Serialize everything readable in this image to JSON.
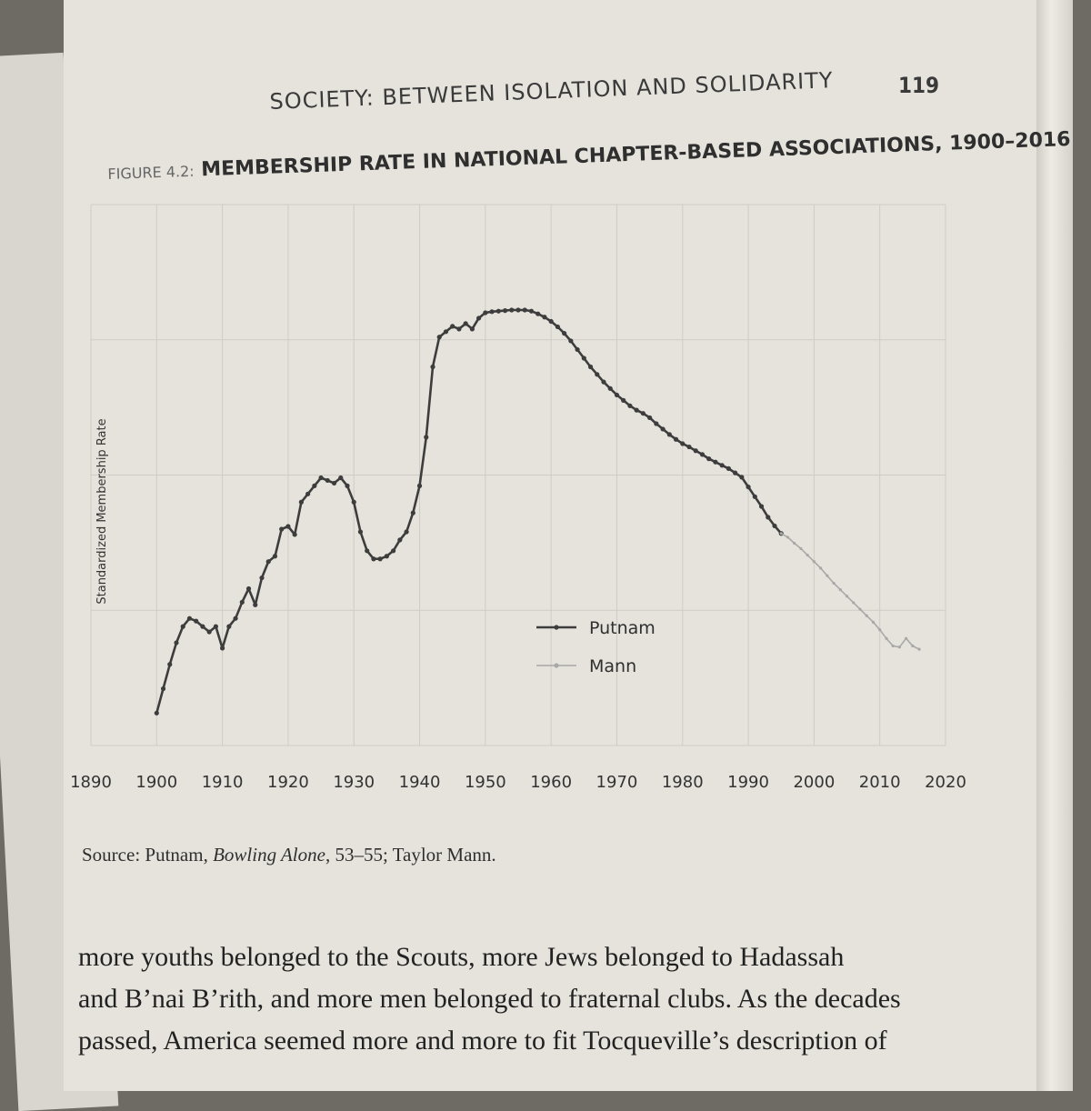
{
  "page": {
    "number": "119",
    "running_head": "SOCIETY: BETWEEN ISOLATION AND SOLIDARITY"
  },
  "figure": {
    "label": "FIGURE 4.2:",
    "title": "MEMBERSHIP RATE IN NATIONAL CHAPTER-BASED ASSOCIATIONS, 1900–2016"
  },
  "source": {
    "prefix": "Source: Putnam, ",
    "book": "Bowling Alone",
    "suffix": ", 53–55; Taylor Mann."
  },
  "body_text": [
    "more youths belonged to the Scouts, more Jews belonged to Hadassah",
    "and B’nai B’rith, and more men belonged to fraternal clubs. As the decades",
    "passed, America seemed more and more to fit Tocqueville’s description of"
  ],
  "colors": {
    "putnam": "#3d3d3d",
    "mann": "#a8a8a8",
    "grid": "#cfccc6"
  },
  "chart_data": {
    "type": "line",
    "title": "MEMBERSHIP RATE IN NATIONAL CHAPTER-BASED ASSOCIATIONS, 1900–2016",
    "xlabel": "",
    "ylabel": "Standardized Membership Rate",
    "xlim": [
      1890,
      2020
    ],
    "ylim": [
      0,
      10
    ],
    "x_ticks": [
      "1890",
      "1900",
      "1910",
      "1920",
      "1930",
      "1940",
      "1950",
      "1960",
      "1970",
      "1980",
      "1990",
      "2000",
      "2010",
      "2020"
    ],
    "grid": true,
    "legend_position": "center",
    "series": [
      {
        "name": "Putnam",
        "x": [
          1900,
          1901,
          1902,
          1903,
          1904,
          1905,
          1906,
          1907,
          1908,
          1909,
          1910,
          1911,
          1912,
          1913,
          1914,
          1915,
          1916,
          1917,
          1918,
          1919,
          1920,
          1921,
          1922,
          1923,
          1924,
          1925,
          1926,
          1927,
          1928,
          1929,
          1930,
          1931,
          1932,
          1933,
          1934,
          1935,
          1936,
          1937,
          1938,
          1939,
          1940,
          1941,
          1942,
          1943,
          1944,
          1945,
          1946,
          1947,
          1948,
          1949,
          1950,
          1951,
          1952,
          1953,
          1954,
          1955,
          1956,
          1957,
          1958,
          1959,
          1960,
          1961,
          1962,
          1963,
          1964,
          1965,
          1966,
          1967,
          1968,
          1969,
          1970,
          1971,
          1972,
          1973,
          1974,
          1975,
          1976,
          1977,
          1978,
          1979,
          1980,
          1981,
          1982,
          1983,
          1984,
          1985,
          1986,
          1987,
          1988,
          1989,
          1990,
          1991,
          1992,
          1993,
          1994,
          1995
        ],
        "values": [
          0.6,
          1.05,
          1.5,
          1.9,
          2.2,
          2.35,
          2.3,
          2.2,
          2.1,
          2.2,
          1.8,
          2.2,
          2.35,
          2.65,
          2.9,
          2.6,
          3.1,
          3.4,
          3.5,
          4.0,
          4.05,
          3.9,
          4.5,
          4.65,
          4.8,
          4.95,
          4.9,
          4.85,
          4.95,
          4.8,
          4.5,
          3.95,
          3.6,
          3.45,
          3.45,
          3.5,
          3.6,
          3.8,
          3.95,
          4.3,
          4.8,
          5.7,
          7.0,
          7.55,
          7.65,
          7.75,
          7.7,
          7.8,
          7.7,
          7.9,
          8.0,
          8.02,
          8.03,
          8.04,
          8.05,
          8.05,
          8.05,
          8.03,
          7.98,
          7.92,
          7.84,
          7.74,
          7.62,
          7.48,
          7.32,
          7.16,
          7.0,
          6.86,
          6.72,
          6.6,
          6.48,
          6.38,
          6.28,
          6.2,
          6.14,
          6.06,
          5.95,
          5.85,
          5.75,
          5.66,
          5.58,
          5.52,
          5.45,
          5.38,
          5.3,
          5.24,
          5.18,
          5.12,
          5.04,
          4.96,
          4.78,
          4.6,
          4.42,
          4.22,
          4.06,
          3.92
        ]
      },
      {
        "name": "Mann",
        "x": [
          1995,
          1996,
          1997,
          1998,
          1999,
          2000,
          2001,
          2002,
          2003,
          2004,
          2005,
          2006,
          2007,
          2008,
          2009,
          2010,
          2011,
          2012,
          2013,
          2014,
          2015,
          2016
        ],
        "values": [
          3.92,
          3.85,
          3.74,
          3.64,
          3.52,
          3.4,
          3.28,
          3.14,
          3.0,
          2.88,
          2.76,
          2.64,
          2.52,
          2.4,
          2.28,
          2.14,
          1.98,
          1.84,
          1.82,
          1.98,
          1.84,
          1.78
        ]
      }
    ]
  }
}
